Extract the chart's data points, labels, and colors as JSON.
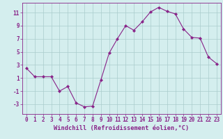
{
  "x": [
    0,
    1,
    2,
    3,
    4,
    5,
    6,
    7,
    8,
    9,
    10,
    11,
    12,
    13,
    14,
    15,
    16,
    17,
    18,
    19,
    20,
    21,
    22,
    23
  ],
  "y": [
    2.5,
    1.2,
    1.2,
    1.2,
    -1.0,
    -0.3,
    -2.8,
    -3.4,
    -3.3,
    0.7,
    4.8,
    7.0,
    9.0,
    8.3,
    9.6,
    11.1,
    11.8,
    11.2,
    10.8,
    8.5,
    7.2,
    7.1,
    4.2,
    3.2
  ],
  "line_color": "#882288",
  "marker_color": "#882288",
  "bg_color": "#d4eeee",
  "grid_color": "#aacccc",
  "axis_color": "#882288",
  "xlabel": "Windchill (Refroidissement éolien,°C)",
  "xlim": [
    -0.5,
    23.5
  ],
  "ylim": [
    -4.5,
    12.5
  ],
  "yticks": [
    -3,
    -1,
    1,
    3,
    5,
    7,
    9,
    11
  ],
  "xticks": [
    0,
    1,
    2,
    3,
    4,
    5,
    6,
    7,
    8,
    9,
    10,
    11,
    12,
    13,
    14,
    15,
    16,
    17,
    18,
    19,
    20,
    21,
    22,
    23
  ],
  "tick_fontsize": 5.5,
  "label_fontsize": 6.2
}
